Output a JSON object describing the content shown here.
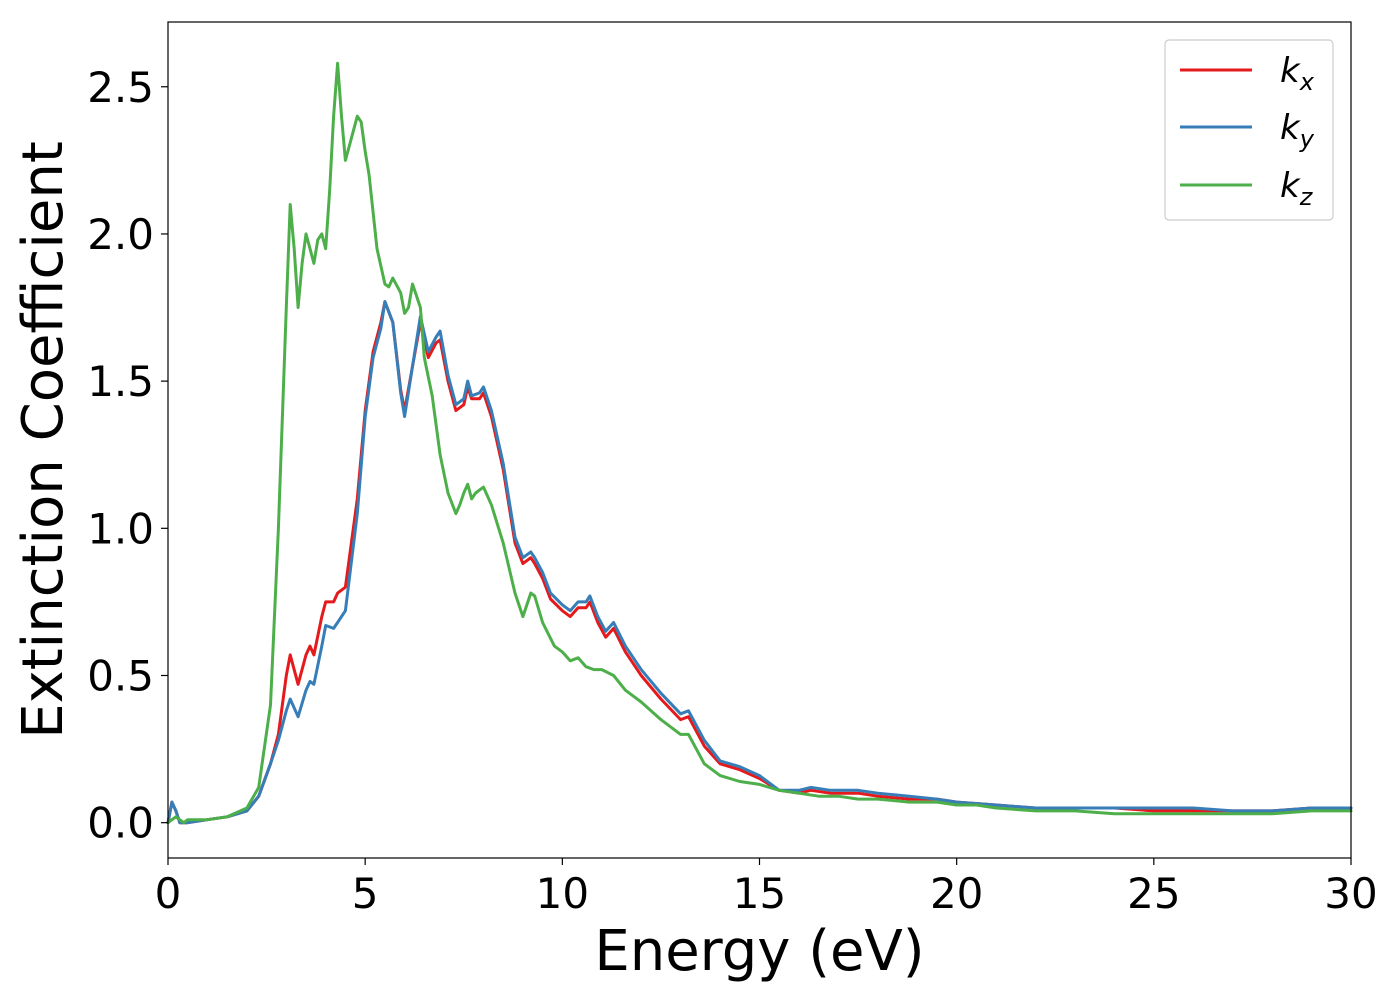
{
  "chart_data": {
    "type": "line",
    "xlabel": "Energy (eV)",
    "ylabel": "Extinction Coefficient",
    "xlim": [
      0,
      30
    ],
    "ylim": [
      -0.12,
      2.72
    ],
    "xticks": [
      0,
      5,
      10,
      15,
      20,
      25,
      30
    ],
    "xtick_labels": [
      "0",
      "5",
      "10",
      "15",
      "20",
      "25",
      "30"
    ],
    "yticks": [
      0.0,
      0.5,
      1.0,
      1.5,
      2.0,
      2.5
    ],
    "ytick_labels": [
      "0.0",
      "0.5",
      "1.0",
      "1.5",
      "2.0",
      "2.5"
    ],
    "grid": false,
    "legend_position": "top-right",
    "series": [
      {
        "name": "k",
        "subscript": "x",
        "color": "#e41a1c",
        "x": [
          0,
          0.1,
          0.2,
          0.3,
          0.4,
          0.5,
          1.0,
          1.5,
          2.0,
          2.3,
          2.6,
          2.8,
          3.0,
          3.1,
          3.3,
          3.5,
          3.6,
          3.7,
          3.9,
          4.0,
          4.2,
          4.3,
          4.5,
          4.8,
          5.0,
          5.2,
          5.4,
          5.5,
          5.7,
          5.9,
          6.0,
          6.2,
          6.4,
          6.6,
          6.8,
          6.9,
          7.1,
          7.3,
          7.5,
          7.6,
          7.7,
          7.9,
          8.0,
          8.2,
          8.5,
          8.8,
          9.0,
          9.2,
          9.3,
          9.5,
          9.7,
          10.0,
          10.2,
          10.4,
          10.6,
          10.7,
          10.9,
          11.1,
          11.3,
          11.6,
          12.0,
          12.5,
          13.0,
          13.2,
          13.6,
          14.0,
          14.5,
          15.0,
          15.5,
          16.0,
          16.3,
          16.8,
          17.5,
          18.0,
          18.8,
          19.5,
          20.0,
          21.0,
          22.0,
          23.0,
          24.0,
          25.0,
          26.0,
          27.0,
          28.0,
          29.0,
          30.0
        ],
        "y": [
          0.0,
          0.07,
          0.04,
          0.0,
          0.0,
          0.0,
          0.01,
          0.02,
          0.04,
          0.09,
          0.2,
          0.3,
          0.5,
          0.57,
          0.47,
          0.57,
          0.6,
          0.57,
          0.7,
          0.75,
          0.75,
          0.78,
          0.8,
          1.1,
          1.4,
          1.6,
          1.7,
          1.77,
          1.7,
          1.47,
          1.4,
          1.55,
          1.7,
          1.58,
          1.63,
          1.64,
          1.5,
          1.4,
          1.42,
          1.48,
          1.44,
          1.44,
          1.46,
          1.38,
          1.2,
          0.95,
          0.88,
          0.9,
          0.88,
          0.83,
          0.76,
          0.72,
          0.7,
          0.73,
          0.73,
          0.75,
          0.68,
          0.63,
          0.66,
          0.58,
          0.5,
          0.42,
          0.35,
          0.36,
          0.26,
          0.2,
          0.18,
          0.15,
          0.11,
          0.1,
          0.11,
          0.1,
          0.1,
          0.09,
          0.08,
          0.08,
          0.07,
          0.06,
          0.05,
          0.05,
          0.05,
          0.04,
          0.04,
          0.04,
          0.04,
          0.05,
          0.05
        ]
      },
      {
        "name": "k",
        "subscript": "y",
        "color": "#377eb8",
        "x": [
          0,
          0.1,
          0.2,
          0.3,
          0.4,
          0.5,
          1.0,
          1.5,
          2.0,
          2.3,
          2.6,
          2.8,
          3.0,
          3.1,
          3.3,
          3.5,
          3.6,
          3.7,
          3.9,
          4.0,
          4.2,
          4.3,
          4.5,
          4.8,
          5.0,
          5.2,
          5.4,
          5.5,
          5.7,
          5.9,
          6.0,
          6.2,
          6.4,
          6.6,
          6.8,
          6.9,
          7.1,
          7.3,
          7.5,
          7.6,
          7.7,
          7.9,
          8.0,
          8.2,
          8.5,
          8.8,
          9.0,
          9.2,
          9.3,
          9.5,
          9.7,
          10.0,
          10.2,
          10.4,
          10.6,
          10.7,
          10.9,
          11.1,
          11.3,
          11.6,
          12.0,
          12.5,
          13.0,
          13.2,
          13.6,
          14.0,
          14.5,
          15.0,
          15.5,
          16.0,
          16.3,
          16.8,
          17.5,
          18.0,
          18.8,
          19.5,
          20.0,
          21.0,
          22.0,
          23.0,
          24.0,
          25.0,
          26.0,
          27.0,
          28.0,
          29.0,
          30.0
        ],
        "y": [
          0.0,
          0.07,
          0.04,
          0.0,
          0.0,
          0.0,
          0.01,
          0.02,
          0.04,
          0.09,
          0.2,
          0.28,
          0.38,
          0.42,
          0.36,
          0.45,
          0.48,
          0.47,
          0.6,
          0.67,
          0.66,
          0.68,
          0.72,
          1.05,
          1.38,
          1.58,
          1.68,
          1.77,
          1.7,
          1.46,
          1.38,
          1.55,
          1.72,
          1.6,
          1.65,
          1.67,
          1.52,
          1.42,
          1.44,
          1.5,
          1.45,
          1.46,
          1.48,
          1.4,
          1.22,
          0.97,
          0.9,
          0.92,
          0.9,
          0.85,
          0.78,
          0.74,
          0.72,
          0.75,
          0.75,
          0.77,
          0.7,
          0.65,
          0.68,
          0.6,
          0.52,
          0.44,
          0.37,
          0.38,
          0.28,
          0.21,
          0.19,
          0.16,
          0.11,
          0.11,
          0.12,
          0.11,
          0.11,
          0.1,
          0.09,
          0.08,
          0.07,
          0.06,
          0.05,
          0.05,
          0.05,
          0.05,
          0.05,
          0.04,
          0.04,
          0.05,
          0.05
        ]
      },
      {
        "name": "k",
        "subscript": "z",
        "color": "#4daf4a",
        "x": [
          0,
          0.1,
          0.2,
          0.3,
          0.4,
          0.5,
          1.0,
          1.5,
          2.0,
          2.3,
          2.6,
          2.8,
          3.0,
          3.1,
          3.2,
          3.3,
          3.4,
          3.5,
          3.6,
          3.7,
          3.8,
          3.9,
          4.0,
          4.1,
          4.2,
          4.3,
          4.4,
          4.5,
          4.6,
          4.8,
          4.9,
          5.0,
          5.1,
          5.3,
          5.5,
          5.6,
          5.7,
          5.9,
          6.0,
          6.1,
          6.2,
          6.4,
          6.5,
          6.7,
          6.9,
          7.1,
          7.3,
          7.4,
          7.5,
          7.6,
          7.7,
          7.8,
          8.0,
          8.2,
          8.5,
          8.8,
          9.0,
          9.2,
          9.3,
          9.5,
          9.8,
          10.0,
          10.2,
          10.4,
          10.6,
          10.8,
          11.0,
          11.3,
          11.6,
          12.0,
          12.5,
          13.0,
          13.2,
          13.6,
          14.0,
          14.5,
          15.0,
          15.5,
          16.0,
          16.5,
          17.0,
          17.5,
          18.0,
          18.8,
          19.5,
          20.0,
          20.5,
          21.0,
          22.0,
          23.0,
          24.0,
          25.0,
          26.0,
          27.0,
          28.0,
          29.0,
          30.0
        ],
        "y": [
          0.0,
          0.01,
          0.02,
          0.01,
          0.0,
          0.01,
          0.01,
          0.02,
          0.05,
          0.12,
          0.4,
          1.0,
          1.75,
          2.1,
          1.95,
          1.75,
          1.9,
          2.0,
          1.95,
          1.9,
          1.98,
          2.0,
          1.95,
          2.15,
          2.4,
          2.58,
          2.4,
          2.25,
          2.3,
          2.4,
          2.38,
          2.28,
          2.2,
          1.95,
          1.83,
          1.82,
          1.85,
          1.8,
          1.73,
          1.75,
          1.83,
          1.75,
          1.58,
          1.45,
          1.25,
          1.12,
          1.05,
          1.08,
          1.12,
          1.15,
          1.1,
          1.12,
          1.14,
          1.08,
          0.95,
          0.78,
          0.7,
          0.78,
          0.77,
          0.68,
          0.6,
          0.58,
          0.55,
          0.56,
          0.53,
          0.52,
          0.52,
          0.5,
          0.45,
          0.41,
          0.35,
          0.3,
          0.3,
          0.2,
          0.16,
          0.14,
          0.13,
          0.11,
          0.1,
          0.09,
          0.09,
          0.08,
          0.08,
          0.07,
          0.07,
          0.06,
          0.06,
          0.05,
          0.04,
          0.04,
          0.03,
          0.03,
          0.03,
          0.03,
          0.03,
          0.04,
          0.04
        ]
      }
    ]
  }
}
